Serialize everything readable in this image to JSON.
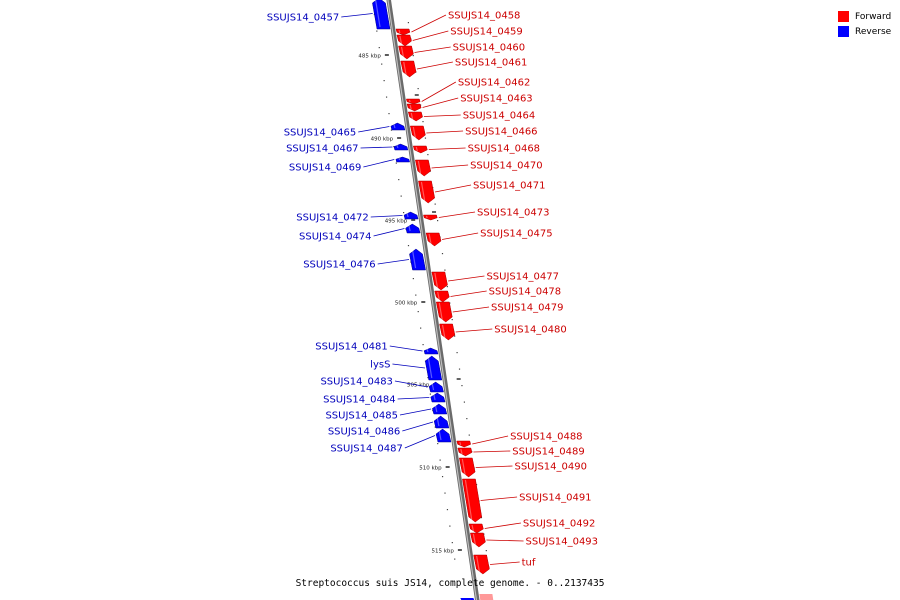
{
  "caption": "Streptococcus suis JS14, complete genome. - 0..2137435",
  "legend": [
    {
      "label": "Forward",
      "color": "#ff0000"
    },
    {
      "label": "Reverse",
      "color": "#0000ff"
    }
  ],
  "colors": {
    "forward": "#ff0000",
    "reverse": "#0000ff",
    "backbone": "#888888",
    "forward_label": "#cc0000",
    "reverse_label": "#0000bb"
  },
  "ticks": [
    "485 kbp",
    "490 kbp",
    "495 kbp",
    "500 kbp",
    "505 kbp",
    "510 kbp",
    "515 kbp"
  ],
  "genes": [
    {
      "name": "SSUJS14_0457",
      "strand": "reverse"
    },
    {
      "name": "SSUJS14_0458",
      "strand": "forward"
    },
    {
      "name": "SSUJS14_0459",
      "strand": "forward"
    },
    {
      "name": "SSUJS14_0460",
      "strand": "forward"
    },
    {
      "name": "SSUJS14_0461",
      "strand": "forward"
    },
    {
      "name": "SSUJS14_0462",
      "strand": "forward"
    },
    {
      "name": "SSUJS14_0463",
      "strand": "forward"
    },
    {
      "name": "SSUJS14_0464",
      "strand": "forward"
    },
    {
      "name": "SSUJS14_0465",
      "strand": "reverse"
    },
    {
      "name": "SSUJS14_0466",
      "strand": "forward"
    },
    {
      "name": "SSUJS14_0467",
      "strand": "reverse"
    },
    {
      "name": "SSUJS14_0468",
      "strand": "forward"
    },
    {
      "name": "SSUJS14_0469",
      "strand": "reverse"
    },
    {
      "name": "SSUJS14_0470",
      "strand": "forward"
    },
    {
      "name": "SSUJS14_0471",
      "strand": "forward"
    },
    {
      "name": "SSUJS14_0472",
      "strand": "reverse"
    },
    {
      "name": "SSUJS14_0473",
      "strand": "forward"
    },
    {
      "name": "SSUJS14_0474",
      "strand": "reverse"
    },
    {
      "name": "SSUJS14_0475",
      "strand": "forward"
    },
    {
      "name": "SSUJS14_0476",
      "strand": "reverse"
    },
    {
      "name": "SSUJS14_0477",
      "strand": "forward"
    },
    {
      "name": "SSUJS14_0478",
      "strand": "forward"
    },
    {
      "name": "SSUJS14_0479",
      "strand": "forward"
    },
    {
      "name": "SSUJS14_0480",
      "strand": "forward"
    },
    {
      "name": "SSUJS14_0481",
      "strand": "reverse"
    },
    {
      "name": "lysS",
      "strand": "reverse"
    },
    {
      "name": "SSUJS14_0483",
      "strand": "reverse"
    },
    {
      "name": "SSUJS14_0484",
      "strand": "reverse"
    },
    {
      "name": "SSUJS14_0485",
      "strand": "reverse"
    },
    {
      "name": "SSUJS14_0486",
      "strand": "reverse"
    },
    {
      "name": "SSUJS14_0487",
      "strand": "reverse"
    },
    {
      "name": "SSUJS14_0488",
      "strand": "forward"
    },
    {
      "name": "SSUJS14_0489",
      "strand": "forward"
    },
    {
      "name": "SSUJS14_0490",
      "strand": "forward"
    },
    {
      "name": "SSUJS14_0491",
      "strand": "forward"
    },
    {
      "name": "SSUJS14_0492",
      "strand": "forward"
    },
    {
      "name": "SSUJS14_0493",
      "strand": "forward"
    },
    {
      "name": "tuf",
      "strand": "forward"
    }
  ]
}
